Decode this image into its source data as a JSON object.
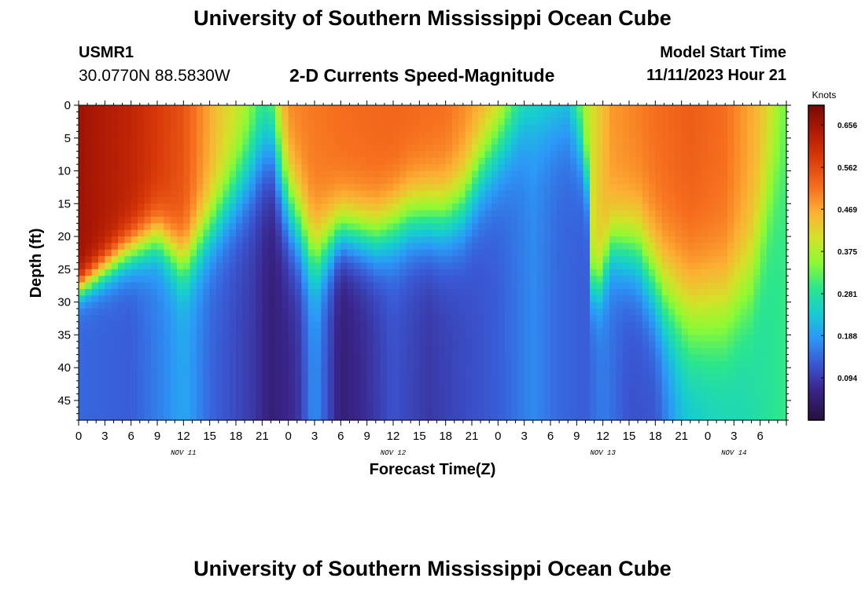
{
  "header": {
    "main_title": "University of Southern Mississippi Ocean Cube",
    "station_id": "USMR1",
    "coordinates": "30.0770N  88.5830W",
    "model_start_label": "Model Start Time",
    "model_start_value": "11/11/2023 Hour 21"
  },
  "footer": {
    "title": "University of Southern Mississippi Ocean Cube"
  },
  "chart_data": {
    "type": "heatmap",
    "title": "2-D Currents Speed-Magnitude",
    "xlabel": "Forecast Time(Z)",
    "ylabel": "Depth (ft)",
    "x_unit": "forecast hour",
    "x_range": [
      0,
      81
    ],
    "y_range": [
      0,
      48
    ],
    "y_ticks": [
      0,
      5,
      10,
      15,
      20,
      25,
      30,
      35,
      40,
      45
    ],
    "x_tick_labels": [
      "0",
      "3",
      "6",
      "9",
      "12",
      "15",
      "18",
      "21",
      "0",
      "3",
      "6",
      "9",
      "12",
      "15",
      "18",
      "21",
      "0",
      "3",
      "6",
      "9",
      "12",
      "15",
      "18",
      "21",
      "0",
      "3",
      "6"
    ],
    "date_labels": [
      {
        "label": "NOV 11",
        "hour": 12
      },
      {
        "label": "NOV 12",
        "hour": 36
      },
      {
        "label": "NOV 13",
        "hour": 60
      },
      {
        "label": "NOV 14",
        "hour": 75
      }
    ],
    "colorbar": {
      "unit": "Knots",
      "min": 0.0,
      "max": 0.7,
      "ticks": [
        0.094,
        0.188,
        0.281,
        0.375,
        0.469,
        0.562,
        0.656
      ]
    },
    "interface_depth_profile": [
      {
        "hour": 0,
        "depth": 28
      },
      {
        "hour": 5,
        "depth": 23
      },
      {
        "hour": 9,
        "depth": 20
      },
      {
        "hour": 12,
        "depth": 24
      },
      {
        "hour": 16,
        "depth": 17
      },
      {
        "hour": 20,
        "depth": 9
      },
      {
        "hour": 22,
        "depth": 5
      },
      {
        "hour": 24,
        "depth": 15
      },
      {
        "hour": 27,
        "depth": 23
      },
      {
        "hour": 30,
        "depth": 19
      },
      {
        "hour": 34,
        "depth": 20
      },
      {
        "hour": 38,
        "depth": 17
      },
      {
        "hour": 42,
        "depth": 17
      },
      {
        "hour": 44,
        "depth": 15
      },
      {
        "hour": 46,
        "depth": 10
      },
      {
        "hour": 48,
        "depth": 6
      },
      {
        "hour": 51,
        "depth": 1
      },
      {
        "hour": 56,
        "depth": 1
      },
      {
        "hour": 58,
        "depth": 8
      },
      {
        "hour": 59,
        "depth": 30
      },
      {
        "hour": 61,
        "depth": 21
      },
      {
        "hour": 64,
        "depth": 22
      },
      {
        "hour": 67,
        "depth": 29
      },
      {
        "hour": 70,
        "depth": 32
      },
      {
        "hour": 74,
        "depth": 31
      },
      {
        "hour": 77,
        "depth": 26
      },
      {
        "hour": 79,
        "depth": 15
      },
      {
        "hour": 81,
        "depth": 5
      }
    ],
    "surface_speed_profile": [
      {
        "hour": 0,
        "value": 0.66
      },
      {
        "hour": 6,
        "value": 0.62
      },
      {
        "hour": 12,
        "value": 0.55
      },
      {
        "hour": 16,
        "value": 0.44
      },
      {
        "hour": 19,
        "value": 0.39
      },
      {
        "hour": 21,
        "value": 0.33
      },
      {
        "hour": 24,
        "value": 0.5
      },
      {
        "hour": 30,
        "value": 0.52
      },
      {
        "hour": 36,
        "value": 0.53
      },
      {
        "hour": 42,
        "value": 0.52
      },
      {
        "hour": 48,
        "value": 0.46
      },
      {
        "hour": 51,
        "value": 0.33
      },
      {
        "hour": 56,
        "value": 0.29
      },
      {
        "hour": 58,
        "value": 0.38
      },
      {
        "hour": 61,
        "value": 0.48
      },
      {
        "hour": 66,
        "value": 0.52
      },
      {
        "hour": 70,
        "value": 0.54
      },
      {
        "hour": 74,
        "value": 0.52
      },
      {
        "hour": 78,
        "value": 0.45
      },
      {
        "hour": 81,
        "value": 0.34
      }
    ],
    "bottom_speed_profile": [
      {
        "hour": 0,
        "value": 0.14
      },
      {
        "hour": 6,
        "value": 0.13
      },
      {
        "hour": 10,
        "value": 0.17
      },
      {
        "hour": 12,
        "value": 0.2
      },
      {
        "hour": 15,
        "value": 0.14
      },
      {
        "hour": 20,
        "value": 0.09
      },
      {
        "hour": 22,
        "value": 0.05
      },
      {
        "hour": 25,
        "value": 0.08
      },
      {
        "hour": 27,
        "value": 0.18
      },
      {
        "hour": 30,
        "value": 0.05
      },
      {
        "hour": 33,
        "value": 0.08
      },
      {
        "hour": 36,
        "value": 0.12
      },
      {
        "hour": 40,
        "value": 0.09
      },
      {
        "hour": 44,
        "value": 0.11
      },
      {
        "hour": 48,
        "value": 0.13
      },
      {
        "hour": 52,
        "value": 0.17
      },
      {
        "hour": 55,
        "value": 0.14
      },
      {
        "hour": 58,
        "value": 0.13
      },
      {
        "hour": 60,
        "value": 0.16
      },
      {
        "hour": 63,
        "value": 0.12
      },
      {
        "hour": 66,
        "value": 0.12
      },
      {
        "hour": 69,
        "value": 0.21
      },
      {
        "hour": 72,
        "value": 0.24
      },
      {
        "hour": 76,
        "value": 0.26
      },
      {
        "hour": 81,
        "value": 0.3
      }
    ],
    "transition_width_ft": [
      {
        "hour": 0,
        "width": 3
      },
      {
        "hour": 16,
        "width": 8
      },
      {
        "hour": 22,
        "width": 12
      },
      {
        "hour": 30,
        "width": 7
      },
      {
        "hour": 48,
        "width": 10
      },
      {
        "hour": 56,
        "width": 10
      },
      {
        "hour": 59,
        "width": 6
      },
      {
        "hour": 70,
        "width": 14
      },
      {
        "hour": 81,
        "width": 12
      }
    ]
  }
}
